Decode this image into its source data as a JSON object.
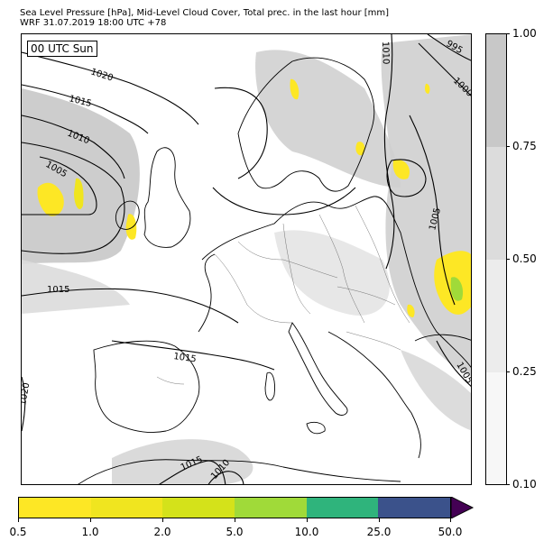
{
  "header": {
    "title_line1": "Sea Level Pressure [hPa], Mid-Level Cloud Cover, Total prec. in the last hour [mm]",
    "title_line2": "WRF 31.07.2019 18:00 UTC +78"
  },
  "map": {
    "time_label": "00 UTC Sun",
    "isobar_labels": [
      "1020",
      "1015",
      "1010",
      "1005",
      "1015",
      "1015",
      "1015",
      "1010",
      "1020",
      "1010",
      "995",
      "1000",
      "1005",
      "1005"
    ]
  },
  "cloud_colorbar": {
    "ticks": [
      "1.00",
      "0.75",
      "0.50",
      "0.25",
      "0.10"
    ],
    "colors": [
      "#c8c8c8",
      "#dcdcdc",
      "#ececec",
      "#f7f7f7"
    ]
  },
  "precip_colorbar": {
    "ticks": [
      "0.5",
      "1.0",
      "2.0",
      "5.0",
      "10.0",
      "25.0",
      "50.0"
    ],
    "colors": [
      "#fde725",
      "#f0e51f",
      "#d4e21a",
      "#a0da39",
      "#2fb47c",
      "#3b528b",
      "#440154"
    ]
  }
}
